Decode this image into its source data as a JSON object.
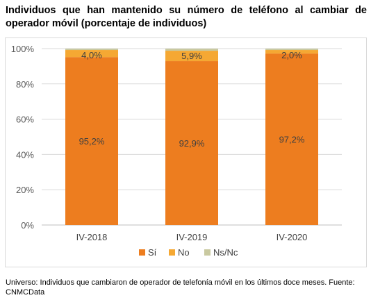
{
  "title": "Individuos que han mantenido su número de teléfono al cambiar de operador móvil (porcentaje de individuos)",
  "footnote": "Universo: Individuos que cambiaron de operador de telefonía móvil en los últimos doce meses. Fuente: CNMCData",
  "chart_data": {
    "type": "bar",
    "stacked": true,
    "categories": [
      "IV-2018",
      "IV-2019",
      "IV-2020"
    ],
    "series": [
      {
        "name": "Sí",
        "values": [
          95.2,
          92.9,
          97.2
        ],
        "color": "#ED7D1F",
        "labels": [
          "95,2%",
          "92,9%",
          "97,2%"
        ]
      },
      {
        "name": "No",
        "values": [
          4.0,
          5.9,
          2.0
        ],
        "color": "#F5A833",
        "labels": [
          "4,0%",
          "5,9%",
          "2,0%"
        ]
      },
      {
        "name": "Ns/Nc",
        "values": [
          0.8,
          1.2,
          0.8
        ],
        "color": "#C9C9A0",
        "labels": []
      }
    ],
    "yticks": [
      "0%",
      "20%",
      "40%",
      "60%",
      "80%",
      "100%"
    ],
    "ylim": [
      0,
      100
    ],
    "grid": true,
    "legend": "bottom"
  }
}
